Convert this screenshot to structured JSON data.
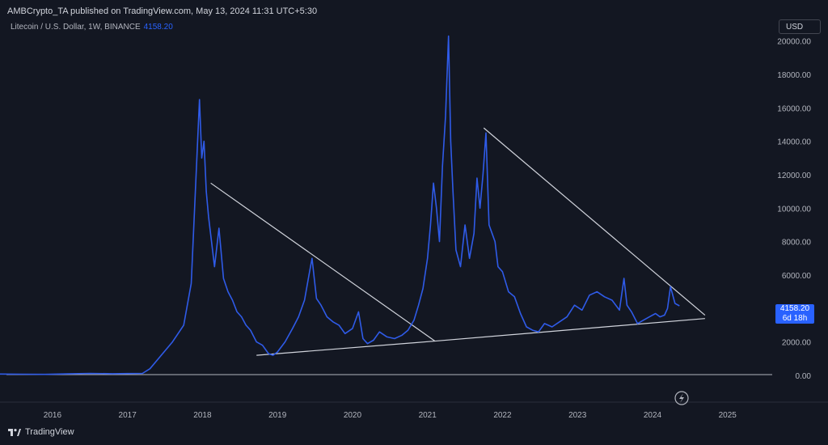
{
  "header": {
    "published": "AMBCrypto_TA published on TradingView.com, May 13, 2024 11:31 UTC+5:30",
    "symbol": "Litecoin / U.S. Dollar, 1W, BINANCE",
    "symbol_price": "4158.20"
  },
  "currency_button": "USD",
  "price_tag": {
    "price": "4158.20",
    "countdown": "6d 18h"
  },
  "footer": {
    "brand": "TradingView"
  },
  "colors": {
    "background": "#131722",
    "series": "#2f5be8",
    "tag": "#2962ff",
    "text": "#b2b5be",
    "trendline": "#d1d4dc"
  },
  "chart_data": {
    "type": "line",
    "title": "Litecoin / U.S. Dollar, 1W, BINANCE",
    "xlabel": "",
    "ylabel": "",
    "xlim": [
      2015.3,
      2025.65
    ],
    "ylim": [
      -1600,
      21000
    ],
    "x_ticks": [
      "2016",
      "2017",
      "2018",
      "2019",
      "2020",
      "2021",
      "2022",
      "2023",
      "2024",
      "2025"
    ],
    "y_ticks": [
      "0.00",
      "2000.00",
      "4000.00",
      "6000.00",
      "8000.00",
      "10000.00",
      "12000.00",
      "14000.00",
      "16000.00",
      "18000.00",
      "20000.00"
    ],
    "grid": false,
    "series": [
      {
        "x": [
          2015.3,
          2015.6,
          2015.9,
          2016.2,
          2016.5,
          2016.8,
          2017.0,
          2017.2,
          2017.3,
          2017.45,
          2017.6,
          2017.75,
          2017.85,
          2017.92,
          2017.96,
          2017.99,
          2018.02,
          2018.05,
          2018.08,
          2018.12,
          2018.16,
          2018.22,
          2018.28,
          2018.34,
          2018.4,
          2018.46,
          2018.52,
          2018.58,
          2018.64,
          2018.72,
          2018.8,
          2018.88,
          2018.94,
          2019.0,
          2019.1,
          2019.2,
          2019.28,
          2019.36,
          2019.42,
          2019.46,
          2019.52,
          2019.58,
          2019.66,
          2019.74,
          2019.82,
          2019.9,
          2020.0,
          2020.08,
          2020.14,
          2020.2,
          2020.28,
          2020.36,
          2020.46,
          2020.56,
          2020.66,
          2020.74,
          2020.82,
          2020.88,
          2020.94,
          2021.0,
          2021.04,
          2021.08,
          2021.12,
          2021.16,
          2021.2,
          2021.24,
          2021.28,
          2021.31,
          2021.34,
          2021.38,
          2021.44,
          2021.5,
          2021.56,
          2021.62,
          2021.66,
          2021.7,
          2021.74,
          2021.78,
          2021.82,
          2021.86,
          2021.9,
          2021.94,
          2022.0,
          2022.08,
          2022.16,
          2022.24,
          2022.32,
          2022.4,
          2022.48,
          2022.56,
          2022.66,
          2022.76,
          2022.86,
          2022.96,
          2023.06,
          2023.16,
          2023.26,
          2023.36,
          2023.46,
          2023.56,
          2023.62,
          2023.66,
          2023.72,
          2023.8,
          2023.88,
          2023.96,
          2024.04,
          2024.1,
          2024.16,
          2024.2,
          2024.24,
          2024.3,
          2024.36
        ],
        "y": [
          80,
          70,
          60,
          90,
          120,
          100,
          110,
          120,
          400,
          1200,
          2000,
          3000,
          5500,
          12500,
          16500,
          13000,
          14000,
          11000,
          9500,
          8000,
          6500,
          8800,
          5800,
          5000,
          4500,
          3800,
          3500,
          3000,
          2700,
          2000,
          1800,
          1300,
          1200,
          1400,
          2000,
          2800,
          3500,
          4500,
          6000,
          7000,
          4600,
          4200,
          3500,
          3200,
          3000,
          2500,
          2800,
          3800,
          2200,
          1900,
          2100,
          2600,
          2300,
          2200,
          2400,
          2700,
          3300,
          4200,
          5200,
          7000,
          9000,
          11500,
          10000,
          8000,
          12500,
          15500,
          20300,
          14000,
          11000,
          7500,
          6500,
          9000,
          7000,
          8500,
          11800,
          10000,
          12000,
          14500,
          9000,
          8500,
          8000,
          6500,
          6200,
          5000,
          4700,
          3700,
          2900,
          2700,
          2600,
          3100,
          2900,
          3200,
          3500,
          4200,
          3900,
          4800,
          5000,
          4700,
          4500,
          3900,
          5800,
          4200,
          3800,
          3100,
          3300,
          3500,
          3700,
          3500,
          3600,
          4000,
          5300,
          4300,
          4158.2
        ]
      }
    ],
    "trendlines": [
      {
        "x": [
          2018.11,
          2021.1
        ],
        "y": [
          11500,
          2050
        ]
      },
      {
        "x": [
          2018.72,
          2021.1
        ],
        "y": [
          1200,
          2050
        ]
      },
      {
        "x": [
          2021.75,
          2024.7
        ],
        "y": [
          14800,
          3600
        ]
      },
      {
        "x": [
          2021.1,
          2024.7
        ],
        "y": [
          2050,
          3400
        ]
      }
    ],
    "last_price": 4158.2
  }
}
